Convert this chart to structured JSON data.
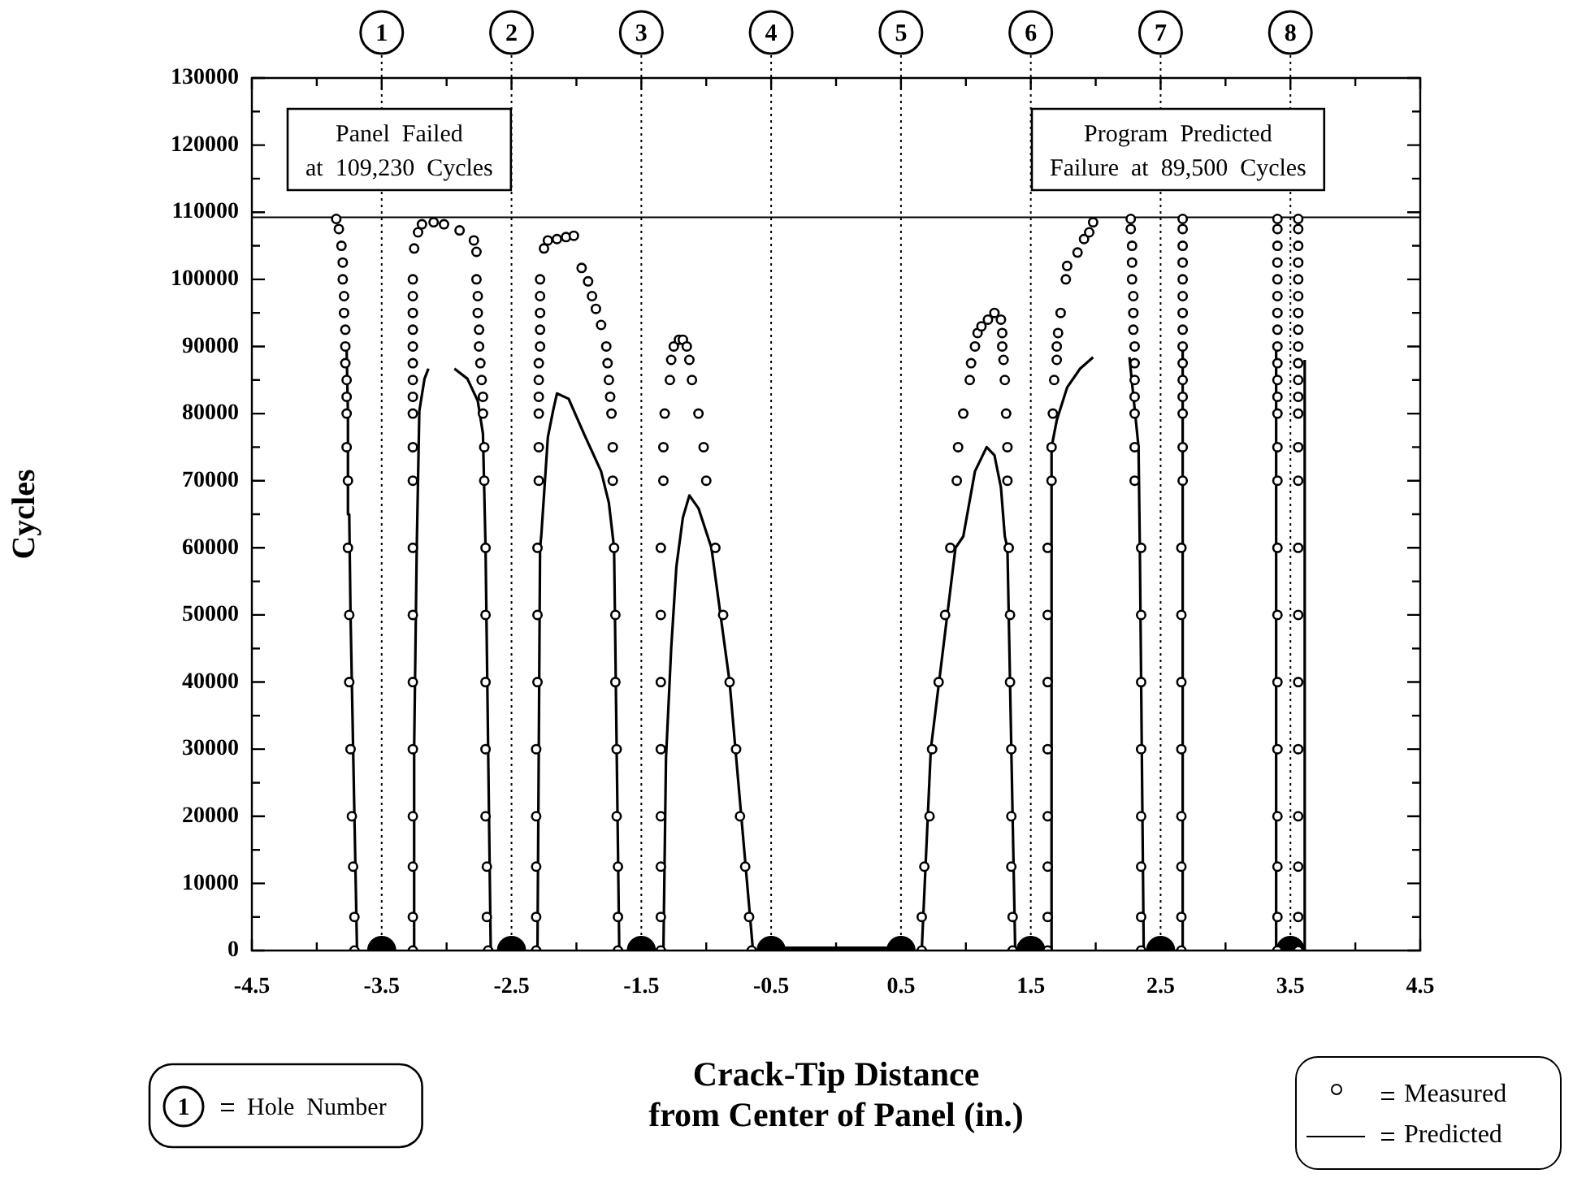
{
  "chart_data": {
    "type": "scatter",
    "xlabel": "Crack-Tip Distance\nfrom Center of Panel (in.)",
    "ylabel": "Cycles",
    "xlim": [
      -4.5,
      4.5
    ],
    "xticks": [
      -4.5,
      {
        "value": -4,
        "label": null
      },
      -3.5,
      {
        "value": -3,
        "label": null
      },
      -2.5,
      {
        "value": -2,
        "label": null
      },
      -1.5,
      {
        "value": -1,
        "label": null
      },
      -0.5,
      {
        "value": 0,
        "label": null
      },
      0.5,
      {
        "value": 1,
        "label": null
      },
      1.5,
      {
        "value": 2,
        "label": null
      },
      2.5,
      {
        "value": 3,
        "label": null
      },
      3.5,
      {
        "value": 4,
        "label": null
      },
      4.5
    ],
    "ylim": [
      0,
      130000
    ],
    "yticks": [
      0,
      {
        "value": 5000,
        "label": null
      },
      10000,
      {
        "value": 15000,
        "label": null
      },
      20000,
      {
        "value": 25000,
        "label": null
      },
      30000,
      {
        "value": 35000,
        "label": null
      },
      40000,
      {
        "value": 45000,
        "label": null
      },
      50000,
      {
        "value": 55000,
        "label": null
      },
      60000,
      {
        "value": 65000,
        "label": null
      },
      70000,
      {
        "value": 75000,
        "label": null
      },
      80000,
      {
        "value": 85000,
        "label": null
      },
      90000,
      {
        "value": 95000,
        "label": null
      },
      100000,
      {
        "value": 105000,
        "label": null
      },
      110000,
      {
        "value": 115000,
        "label": null
      },
      120000,
      {
        "value": 125000,
        "label": null
      },
      130000
    ],
    "grid": false,
    "legend": "bottom right",
    "series": [
      {
        "name": "Measured",
        "type": "scatter",
        "marker": "circle",
        "color": "#000000",
        "x": [
          -3.71,
          -3.71,
          -3.72,
          -3.73,
          -3.74,
          -3.75,
          -3.75,
          -3.76,
          -3.76,
          -3.77,
          -3.77,
          -3.77,
          -3.77,
          -3.78,
          -3.78,
          -3.78,
          -3.79,
          -3.79,
          -3.8,
          -3.8,
          -3.81,
          -3.83,
          -3.85,
          -3.26,
          -3.26,
          -3.26,
          -3.26,
          -3.26,
          -3.26,
          -3.26,
          -3.26,
          -3.26,
          -3.26,
          -3.26,
          -3.26,
          -3.26,
          -3.26,
          -3.26,
          -3.26,
          -3.26,
          -3.26,
          -3.26,
          -3.25,
          -3.22,
          -3.19,
          -3.1,
          -3.02,
          -2.9,
          -2.79,
          -2.77,
          -2.77,
          -2.76,
          -2.76,
          -2.75,
          -2.75,
          -2.74,
          -2.73,
          -2.72,
          -2.72,
          -2.71,
          -2.71,
          -2.7,
          -2.7,
          -2.7,
          -2.7,
          -2.7,
          -2.69,
          -2.69,
          -2.68,
          -2.31,
          -2.31,
          -2.31,
          -2.31,
          -2.31,
          -2.3,
          -2.3,
          -2.3,
          -2.29,
          -2.29,
          -2.29,
          -2.29,
          -2.29,
          -2.29,
          -2.28,
          -2.28,
          -2.28,
          -2.28,
          -2.28,
          -2.25,
          -2.22,
          -2.15,
          -2.08,
          -2.02,
          -1.96,
          -1.91,
          -1.88,
          -1.85,
          -1.81,
          -1.77,
          -1.76,
          -1.75,
          -1.74,
          -1.73,
          -1.72,
          -1.72,
          -1.71,
          -1.7,
          -1.7,
          -1.69,
          -1.69,
          -1.68,
          -1.68,
          -1.68,
          -1.35,
          -1.35,
          -1.35,
          -1.35,
          -1.35,
          -1.35,
          -1.35,
          -1.35,
          -1.33,
          -1.33,
          -1.32,
          -1.28,
          -1.27,
          -1.25,
          -1.21,
          -1.18,
          -1.15,
          -1.13,
          -1.11,
          -1.06,
          -1.02,
          -1,
          -0.93,
          -0.87,
          -0.82,
          -0.77,
          -0.74,
          -0.7,
          -0.67,
          -0.65,
          0.66,
          0.66,
          0.68,
          0.72,
          0.74,
          0.79,
          0.84,
          0.88,
          0.93,
          0.94,
          0.98,
          1.03,
          1.04,
          1.07,
          1.09,
          1.12,
          1.17,
          1.22,
          1.27,
          1.28,
          1.28,
          1.29,
          1.3,
          1.31,
          1.32,
          1.32,
          1.33,
          1.34,
          1.34,
          1.35,
          1.35,
          1.35,
          1.36,
          1.36,
          1.63,
          1.63,
          1.63,
          1.63,
          1.63,
          1.63,
          1.63,
          1.63,
          1.66,
          1.66,
          1.67,
          1.68,
          1.7,
          1.7,
          1.71,
          1.73,
          1.77,
          1.78,
          1.86,
          1.91,
          1.95,
          1.98,
          2.35,
          2.35,
          2.35,
          2.35,
          2.35,
          2.35,
          2.35,
          2.35,
          2.3,
          2.3,
          2.3,
          2.3,
          2.3,
          2.3,
          2.3,
          2.29,
          2.29,
          2.29,
          2.28,
          2.28,
          2.28,
          2.27,
          2.27,
          2.66,
          2.66,
          2.66,
          2.66,
          2.66,
          2.66,
          2.66,
          2.66,
          2.67,
          2.67,
          2.67,
          2.67,
          2.67,
          2.67,
          2.67,
          2.67,
          2.67,
          2.67,
          2.67,
          2.67,
          2.67,
          2.67,
          2.67,
          3.4,
          3.4,
          3.4,
          3.4,
          3.4,
          3.4,
          3.4,
          3.4,
          3.4,
          3.4,
          3.4,
          3.4,
          3.4,
          3.4,
          3.4,
          3.4,
          3.4,
          3.4,
          3.4,
          3.4,
          3.4,
          3.4,
          3.4,
          3.56,
          3.56,
          3.56,
          3.56,
          3.56,
          3.56,
          3.56,
          3.56,
          3.56,
          3.56,
          3.56,
          3.56,
          3.56,
          3.56,
          3.56,
          3.56,
          3.56,
          3.56,
          3.56,
          3.56,
          3.56,
          3.56,
          3.56
        ],
        "values": [
          0,
          5000,
          12500,
          20000,
          30000,
          40000,
          50000,
          60000,
          70000,
          75000,
          80000,
          82500,
          85000,
          87500,
          90000,
          92500,
          95000,
          97500,
          100000,
          102500,
          105000,
          107500,
          109000,
          0,
          5000,
          12500,
          20000,
          30000,
          40000,
          50000,
          60000,
          70000,
          75000,
          80000,
          82500,
          85000,
          87500,
          90000,
          92500,
          95000,
          97500,
          100000,
          104600,
          107000,
          108200,
          108500,
          108200,
          107300,
          105800,
          104100,
          100000,
          97500,
          95000,
          92500,
          90000,
          87500,
          85000,
          82500,
          80000,
          75000,
          70000,
          60000,
          50000,
          40000,
          30000,
          20000,
          12500,
          5000,
          0,
          0,
          5000,
          12500,
          20000,
          30000,
          40000,
          50000,
          60000,
          70000,
          75000,
          80000,
          82500,
          85000,
          87500,
          90000,
          92500,
          95000,
          97500,
          100000,
          104600,
          105800,
          106000,
          106300,
          106500,
          101700,
          99700,
          97500,
          95600,
          93200,
          90000,
          87500,
          85000,
          82500,
          80000,
          75000,
          70000,
          60000,
          50000,
          40000,
          30000,
          20000,
          12500,
          5000,
          0,
          0,
          5000,
          12500,
          20000,
          30000,
          40000,
          50000,
          60000,
          70000,
          75000,
          80000,
          85000,
          88000,
          90000,
          91000,
          91000,
          90000,
          88000,
          85000,
          80000,
          75000,
          70000,
          60000,
          50000,
          40000,
          30000,
          20000,
          12500,
          5000,
          0,
          0,
          5000,
          12500,
          20000,
          30000,
          40000,
          50000,
          60000,
          70000,
          75000,
          80000,
          85000,
          87500,
          90000,
          92000,
          93000,
          94000,
          95000,
          94000,
          92000,
          90000,
          88000,
          85000,
          80000,
          75000,
          70000,
          60000,
          50000,
          40000,
          30000,
          20000,
          12500,
          5000,
          0,
          0,
          5000,
          12500,
          20000,
          30000,
          40000,
          50000,
          60000,
          70000,
          75000,
          80000,
          85000,
          88000,
          90000,
          92000,
          95000,
          100000,
          102000,
          104000,
          106000,
          107000,
          108500,
          0,
          5000,
          12500,
          20000,
          30000,
          40000,
          50000,
          60000,
          70000,
          75000,
          80000,
          82500,
          85000,
          87500,
          90000,
          92500,
          95000,
          97500,
          100000,
          102500,
          105000,
          107500,
          109000,
          0,
          5000,
          12500,
          20000,
          30000,
          40000,
          50000,
          60000,
          70000,
          75000,
          80000,
          82500,
          85000,
          87500,
          90000,
          92500,
          95000,
          97500,
          100000,
          102500,
          105000,
          107500,
          109000,
          0,
          5000,
          12500,
          20000,
          30000,
          40000,
          50000,
          60000,
          70000,
          75000,
          80000,
          82500,
          85000,
          87500,
          90000,
          92500,
          95000,
          97500,
          100000,
          102500,
          105000,
          107500,
          109000,
          0,
          5000,
          12500,
          20000,
          30000,
          40000,
          50000,
          60000,
          70000,
          75000,
          80000,
          82500,
          85000,
          87500,
          90000,
          92500,
          95000,
          97500,
          100000,
          102500,
          105000,
          107500,
          109000
        ]
      },
      {
        "name": "Predicted",
        "type": "line",
        "marker": "none",
        "color": "#000000",
        "x": [
          -3.69,
          -3.7,
          -3.72,
          -3.74,
          -3.75,
          -3.76,
          -3.77
        ],
        "values": [
          0,
          10000,
          30000,
          50000,
          65000,
          80000,
          89500
        ]
      },
      {
        "type": "line",
        "marker": "none",
        "color": "#000000",
        "x": [
          -3.26,
          -3.25,
          -3.23,
          -3.21,
          -3.17,
          -3.14
        ],
        "values": [
          0,
          30000,
          60000,
          80400,
          85200,
          86700
        ]
      },
      {
        "type": "line",
        "marker": "none",
        "color": "#000000",
        "x": [
          -2.94,
          -2.84,
          -2.76,
          -2.72,
          -2.7,
          -2.68,
          -2.66
        ],
        "values": [
          86700,
          85200,
          81900,
          77000,
          60000,
          30000,
          0
        ]
      },
      {
        "type": "line",
        "marker": "none",
        "color": "#000000",
        "x": [
          -2.3,
          -2.28,
          -2.27,
          -2.22,
          -2.18,
          -2.15,
          -2.06,
          -1.94,
          -1.81,
          -1.75,
          -1.71,
          -1.67
        ],
        "values": [
          0,
          60000,
          62000,
          76500,
          80400,
          83000,
          82200,
          76900,
          71400,
          66700,
          60000,
          0
        ]
      },
      {
        "type": "line",
        "marker": "none",
        "color": "#000000",
        "x": [
          -1.33,
          -1.31,
          -1.27,
          -1.23,
          -1.18,
          -1.13,
          -1.06,
          -0.96,
          -0.82,
          -0.73,
          -0.64
        ],
        "values": [
          0,
          28700,
          45000,
          57200,
          64500,
          67800,
          65900,
          60000,
          40000,
          20000,
          0
        ]
      },
      {
        "type": "line",
        "marker": "none",
        "color": "#000000",
        "x": [
          0.66,
          0.73,
          0.92,
          0.98,
          1.07,
          1.16,
          1.22,
          1.27,
          1.3,
          1.32,
          1.38
        ],
        "values": [
          0,
          30000,
          60000,
          61700,
          71400,
          75000,
          73800,
          69000,
          61700,
          60000,
          0
        ]
      },
      {
        "type": "line",
        "marker": "none",
        "color": "#000000",
        "x": [
          1.66,
          1.66,
          1.7,
          1.78,
          1.88,
          1.98
        ],
        "values": [
          0,
          75000,
          79000,
          83900,
          86700,
          88400
        ]
      },
      {
        "type": "line",
        "marker": "none",
        "color": "#000000",
        "x": [
          2.37,
          2.34,
          2.33,
          2.26
        ],
        "values": [
          0,
          60000,
          75000,
          88400
        ]
      },
      {
        "type": "line",
        "marker": "none",
        "color": "#000000",
        "x": [
          2.67,
          2.67
        ],
        "values": [
          0,
          89500
        ]
      },
      {
        "type": "line",
        "marker": "none",
        "color": "#000000",
        "x": [
          3.39,
          3.39
        ],
        "values": [
          0,
          89500
        ]
      },
      {
        "type": "line",
        "marker": "none",
        "color": "#000000",
        "x": [
          3.61,
          3.61
        ],
        "values": [
          0,
          88000
        ]
      },
      {
        "marker": "circle",
        "color": "#000000",
        "x": [
          -3.5,
          -2.5,
          -1.5,
          -0.5,
          0.5,
          1.5,
          2.5,
          3.5
        ],
        "values": [
          0,
          0,
          0,
          0,
          0,
          0,
          0,
          0
        ]
      },
      {
        "type": "line",
        "marker": "none",
        "color": "#000000",
        "x": [
          -0.5,
          0.5
        ],
        "values": [
          0,
          0
        ]
      }
    ],
    "ref_lines": [
      {
        "axis": "x",
        "value": -3.5,
        "line_style": "dotted",
        "color": "#000000"
      },
      {
        "axis": "x",
        "value": -2.5,
        "line_style": "dotted",
        "color": "#000000"
      },
      {
        "axis": "x",
        "value": -1.5,
        "line_style": "dotted",
        "color": "#000000"
      },
      {
        "axis": "x",
        "value": -0.5,
        "line_style": "dotted",
        "color": "#000000"
      },
      {
        "axis": "x",
        "value": 0.5,
        "line_style": "dotted",
        "color": "#000000"
      },
      {
        "axis": "x",
        "value": 1.5,
        "line_style": "dotted",
        "color": "#000000"
      },
      {
        "axis": "x",
        "value": 2.5,
        "line_style": "dotted",
        "color": "#000000"
      },
      {
        "axis": "x",
        "value": 3.5,
        "line_style": "dotted",
        "color": "#000000"
      },
      {
        "axis": "y",
        "value": 109230,
        "line_style": "solid",
        "color": "#000000"
      }
    ],
    "annotations": [
      "Panel  Failed\nat  109,230  Cycles",
      "Program  Predicted\nFailure  at  89,500  Cycles",
      "Hole  Number",
      "1",
      "2",
      "3",
      "4",
      "5",
      "6",
      "7",
      "8"
    ]
  }
}
